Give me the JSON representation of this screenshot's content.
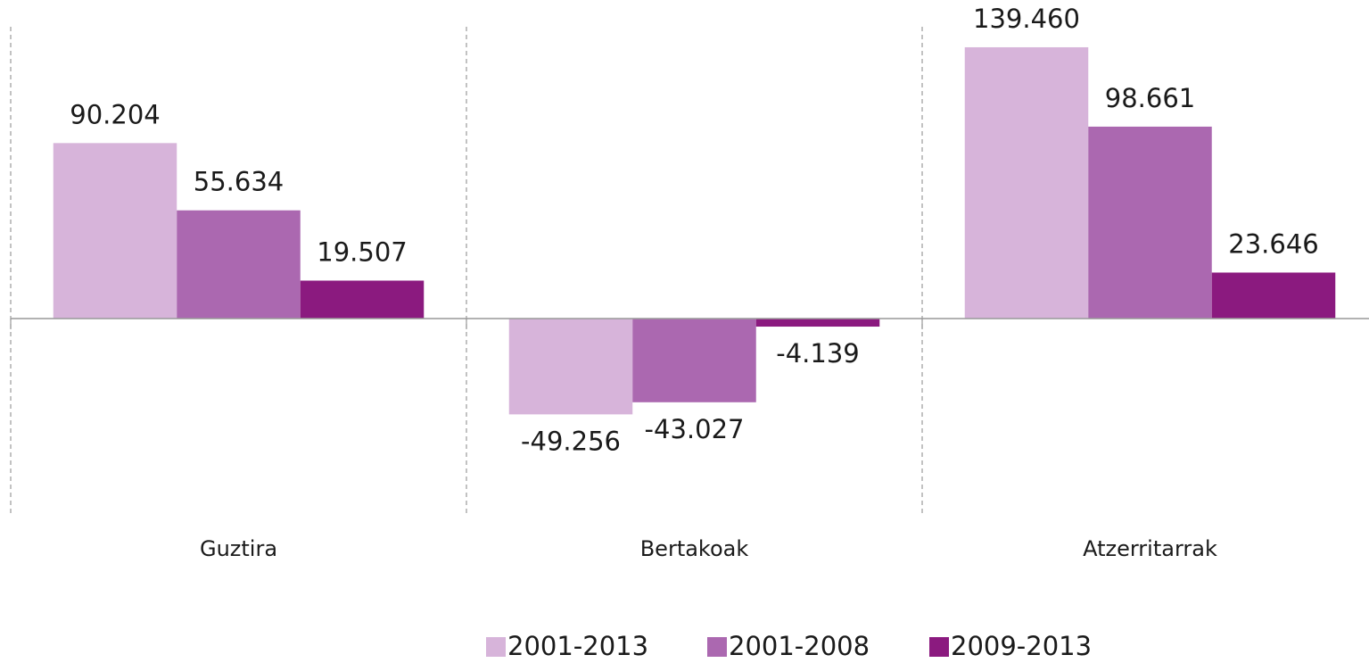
{
  "chart_data": {
    "type": "bar",
    "categories": [
      "Guztira",
      "Bertakoak",
      "Atzerritarrak"
    ],
    "series": [
      {
        "name": "2001-2013",
        "color": "#d7b4da",
        "values": [
          90204,
          -49256,
          139460
        ],
        "value_labels": [
          "90.204",
          "-49.256",
          "139.460"
        ]
      },
      {
        "name": "2001-2008",
        "color": "#ab68b0",
        "values": [
          55634,
          -43027,
          98661
        ],
        "value_labels": [
          "55.634",
          "-43.027",
          "98.661"
        ]
      },
      {
        "name": "2009-2013",
        "color": "#8b1a7f",
        "values": [
          19507,
          -4139,
          23646
        ],
        "value_labels": [
          "19.507",
          "-4.139",
          "23.646"
        ]
      }
    ],
    "ylim": [
      -100000,
      150000
    ]
  }
}
